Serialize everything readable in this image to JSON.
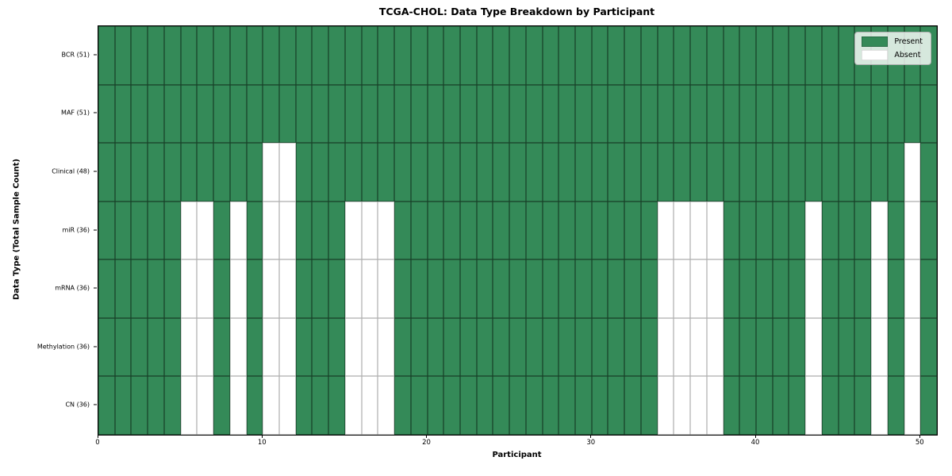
{
  "chart_data": {
    "type": "heatmap",
    "title": "TCGA-CHOL: Data Type Breakdown by Participant",
    "xlabel": "Participant",
    "ylabel": "Data Type (Total Sample Count)",
    "n_participants": 51,
    "x_range": [
      0,
      51
    ],
    "x_ticks": [
      0,
      10,
      20,
      30,
      40,
      50
    ],
    "x_tick_labels": [
      "0",
      "10",
      "20",
      "30",
      "40",
      "50"
    ],
    "grid": "cell-edges",
    "legend_position": "upper-right",
    "colors": {
      "present": "#348a58",
      "absent": "#ffffff"
    },
    "rows": [
      {
        "key": "bcr",
        "label": "BCR (51)",
        "total_samples": 51,
        "absent_participants": []
      },
      {
        "key": "maf",
        "label": "MAF (51)",
        "total_samples": 51,
        "absent_participants": []
      },
      {
        "key": "clinical",
        "label": "Clinical (48)",
        "total_samples": 48,
        "absent_participants": [
          10,
          11,
          49
        ]
      },
      {
        "key": "mir",
        "label": "miR (36)",
        "total_samples": 36,
        "absent_participants": [
          5,
          6,
          8,
          10,
          11,
          15,
          16,
          17,
          34,
          35,
          36,
          37,
          43,
          47,
          49
        ]
      },
      {
        "key": "mrna",
        "label": "mRNA (36)",
        "total_samples": 36,
        "absent_participants": [
          5,
          6,
          8,
          10,
          11,
          15,
          16,
          17,
          34,
          35,
          36,
          37,
          43,
          47,
          49
        ]
      },
      {
        "key": "methylation",
        "label": "Methylation (36)",
        "total_samples": 36,
        "absent_participants": [
          5,
          6,
          8,
          10,
          11,
          15,
          16,
          17,
          34,
          35,
          36,
          37,
          43,
          47,
          49
        ]
      },
      {
        "key": "cn",
        "label": "CN (36)",
        "total_samples": 36,
        "absent_participants": [
          5,
          6,
          8,
          10,
          11,
          15,
          16,
          17,
          34,
          35,
          36,
          37,
          43,
          47,
          49
        ]
      }
    ],
    "legend": [
      {
        "key": "present",
        "label": "Present",
        "color": "#348a58"
      },
      {
        "key": "absent",
        "label": "Absent",
        "color": "#ffffff"
      }
    ]
  }
}
